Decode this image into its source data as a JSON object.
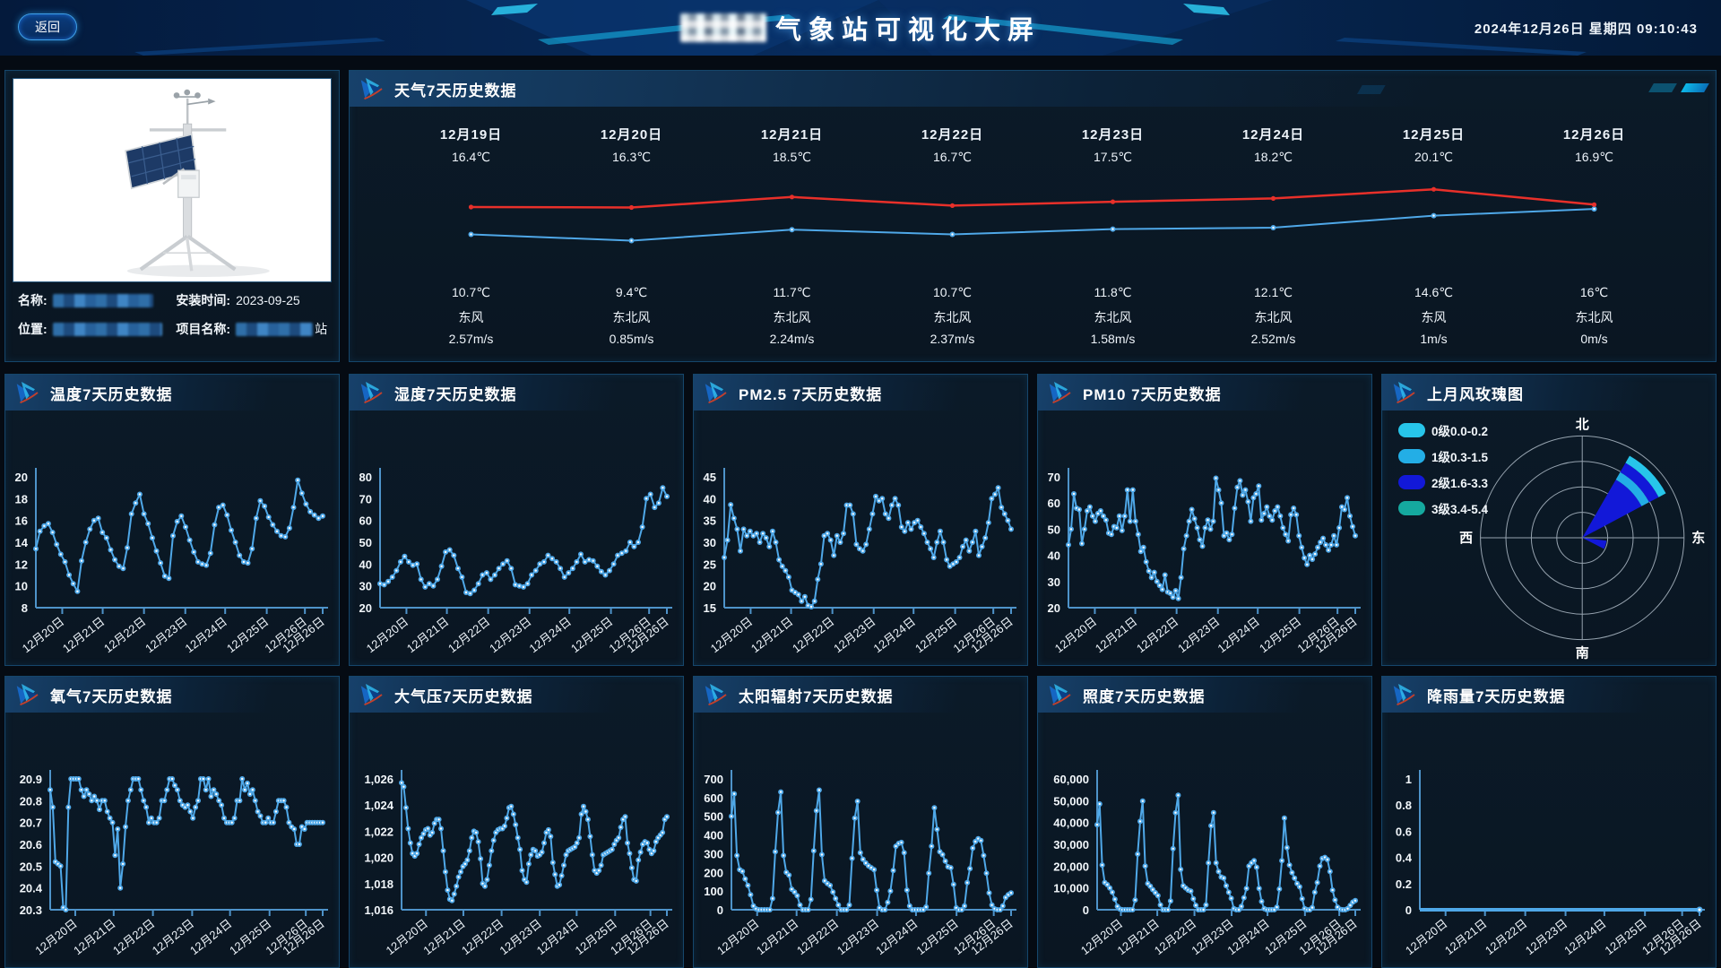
{
  "header": {
    "back_label": "返回",
    "title": "气象站可视化大屏",
    "datetime": "2024年12月26日  星期四  09:10:43"
  },
  "station": {
    "fields": [
      {
        "label": "名称:",
        "value": "",
        "redacted": true
      },
      {
        "label": "安装时间:",
        "value": "2023-09-25",
        "redacted": false
      },
      {
        "label": "位置:",
        "value": "",
        "redacted": true
      },
      {
        "label": "项目名称:",
        "value": "站",
        "redacted": true
      }
    ]
  },
  "theme": {
    "line": "#4fa8e8",
    "red_line": "#e8302a",
    "axis": "#4e93c9",
    "panel_border": "#15466b",
    "accent_cyan": "#0db8e8"
  },
  "chart_data": {
    "x_labels": [
      "12月20日",
      "12月21日",
      "12月22日",
      "12月23日",
      "12月24日",
      "12月25日",
      "12月26日",
      "12月26日"
    ],
    "weather": {
      "title": "天气7天历史数据",
      "type": "line",
      "series_high_color": "#e8302a",
      "series_low_color": "#4fa8e8",
      "ylim": [
        8,
        22
      ],
      "days": [
        {
          "date": "12月19日",
          "high": "16.4℃",
          "high_v": 16.4,
          "low": "10.7℃",
          "low_v": 10.7,
          "wind_dir": "东风",
          "wind_speed": "2.57m/s"
        },
        {
          "date": "12月20日",
          "high": "16.3℃",
          "high_v": 16.3,
          "low": "9.4℃",
          "low_v": 9.4,
          "wind_dir": "东北风",
          "wind_speed": "0.85m/s"
        },
        {
          "date": "12月21日",
          "high": "18.5℃",
          "high_v": 18.5,
          "low": "11.7℃",
          "low_v": 11.7,
          "wind_dir": "东北风",
          "wind_speed": "2.24m/s"
        },
        {
          "date": "12月22日",
          "high": "16.7℃",
          "high_v": 16.7,
          "low": "10.7℃",
          "low_v": 10.7,
          "wind_dir": "东北风",
          "wind_speed": "2.37m/s"
        },
        {
          "date": "12月23日",
          "high": "17.5℃",
          "high_v": 17.5,
          "low": "11.8℃",
          "low_v": 11.8,
          "wind_dir": "东北风",
          "wind_speed": "1.58m/s"
        },
        {
          "date": "12月24日",
          "high": "18.2℃",
          "high_v": 18.2,
          "low": "12.1℃",
          "low_v": 12.1,
          "wind_dir": "东北风",
          "wind_speed": "2.52m/s"
        },
        {
          "date": "12月25日",
          "high": "20.1℃",
          "high_v": 20.1,
          "low": "14.6℃",
          "low_v": 14.6,
          "wind_dir": "东风",
          "wind_speed": "1m/s"
        },
        {
          "date": "12月26日",
          "high": "16.9℃",
          "high_v": 16.9,
          "low": "16℃",
          "low_v": 16.0,
          "wind_dir": "东北风",
          "wind_speed": "0m/s"
        }
      ]
    },
    "panels": [
      {
        "key": "temperature",
        "title": "温度7天历史数据",
        "type": "line",
        "ylim": [
          8,
          20
        ],
        "yticks": [
          "8",
          "10",
          "12",
          "14",
          "16",
          "18",
          "20"
        ],
        "values": [
          13.4,
          15.0,
          15.5,
          15.7,
          14.9,
          13.8,
          12.9,
          12.2,
          11.0,
          10.2,
          9.5,
          12.3,
          14.0,
          15.2,
          16.0,
          16.2,
          14.9,
          14.4,
          13.3,
          12.4,
          11.8,
          11.6,
          13.5,
          16.6,
          17.6,
          18.4,
          16.6,
          15.7,
          14.4,
          13.2,
          12.1,
          10.9,
          10.7,
          14.6,
          15.9,
          16.4,
          15.4,
          14.2,
          13.1,
          12.2,
          12.0,
          11.9,
          13.0,
          15.6,
          17.2,
          17.4,
          16.5,
          15.1,
          14.0,
          12.8,
          12.2,
          12.1,
          13.4,
          16.2,
          17.8,
          17.3,
          16.3,
          15.6,
          15.0,
          14.6,
          14.5,
          15.3,
          17.2,
          19.7,
          18.5,
          17.5,
          16.8,
          16.5,
          16.2,
          16.4
        ]
      },
      {
        "key": "humidity",
        "title": "湿度7天历史数据",
        "type": "line",
        "ylim": [
          20,
          80
        ],
        "yticks": [
          "20",
          "30",
          "40",
          "50",
          "60",
          "70",
          "80"
        ],
        "values": [
          31,
          30.5,
          32,
          34,
          37,
          41,
          43.5,
          41,
          39.5,
          40,
          33,
          29.5,
          31,
          30,
          33,
          39,
          45.5,
          46.5,
          44,
          38,
          34,
          27,
          26.5,
          28,
          31,
          35,
          36,
          33,
          35,
          38,
          40,
          41.5,
          38,
          30.5,
          30,
          29.5,
          31,
          35,
          37,
          40,
          41,
          44,
          42.5,
          41,
          38,
          34,
          36,
          38,
          41,
          44.5,
          41,
          42,
          41.5,
          39,
          36.5,
          35,
          37,
          40,
          44,
          45,
          46,
          50,
          48,
          50,
          57,
          70,
          72,
          66,
          68,
          75,
          71
        ]
      },
      {
        "key": "pm25",
        "title": "PM2.5 7天历史数据",
        "type": "line",
        "ylim": [
          15,
          45
        ],
        "yticks": [
          "15",
          "20",
          "25",
          "30",
          "35",
          "40",
          "45"
        ],
        "values": [
          26.5,
          30.5,
          38.6,
          35.5,
          33,
          28,
          33,
          31.5,
          32.5,
          31.5,
          32,
          30,
          32,
          31,
          29,
          32.5,
          30,
          26,
          24.5,
          23.5,
          22,
          19,
          18.5,
          18,
          16.5,
          17.5,
          15.5,
          15.2,
          16.5,
          21.5,
          25,
          31.5,
          32,
          30.5,
          27,
          31.5,
          30,
          32,
          38.5,
          38.5,
          36.5,
          29.5,
          28.5,
          28,
          29.5,
          33,
          36.5,
          40.5,
          39.5,
          40,
          36.5,
          35.5,
          38.5,
          40,
          38.5,
          33.5,
          32.5,
          34.5,
          33,
          34.5,
          35,
          33.5,
          32,
          30,
          28.5,
          26.5,
          30,
          32.5,
          30,
          26,
          24.5,
          25,
          25.5,
          26.5,
          29,
          30.5,
          28,
          30,
          32.5,
          27,
          29,
          31,
          34.5,
          40,
          41,
          42.5,
          38,
          36.5,
          35,
          33
        ]
      },
      {
        "key": "pm10",
        "title": "PM10 7天历史数据",
        "type": "line",
        "ylim": [
          20,
          70
        ],
        "yticks": [
          "20",
          "30",
          "40",
          "50",
          "60",
          "70"
        ],
        "values": [
          44,
          50,
          63.5,
          58,
          57.5,
          44.5,
          50,
          57,
          58.5,
          55,
          53,
          56,
          57,
          55,
          53.5,
          48.5,
          48,
          51,
          50.5,
          55,
          49.5,
          55,
          65,
          53,
          65,
          53,
          48,
          41.5,
          43,
          37.5,
          34,
          31.5,
          33.5,
          30,
          28.5,
          27,
          32.5,
          26,
          25.5,
          24,
          26.5,
          23.5,
          31.5,
          42.5,
          47.5,
          53,
          57.5,
          54,
          50.5,
          46,
          43.5,
          50.5,
          53.5,
          50,
          53,
          69.5,
          65,
          60,
          47.5,
          48.5,
          46,
          48,
          58,
          66,
          68.5,
          63,
          65,
          60.5,
          53,
          62,
          63.5,
          66.5,
          53.5,
          56,
          58.5,
          55,
          53.5,
          57,
          58.5,
          55,
          50.5,
          48,
          45.5,
          55.5,
          58,
          55.5,
          47.5,
          43,
          39,
          36.5,
          40,
          38.5,
          40.5,
          43,
          45,
          46.5,
          44,
          42,
          44,
          47.5,
          44,
          50.5,
          58.5,
          57.5,
          62,
          55,
          51,
          47.5
        ]
      },
      {
        "key": "windrose",
        "title": "上月风玫瑰图",
        "type": "windrose",
        "compass": {
          "n": "北",
          "e": "东",
          "s": "南",
          "w": "西"
        },
        "legend": [
          {
            "label": "0级0.0-0.2",
            "color": "#27c5ea"
          },
          {
            "label": "1级0.3-1.5",
            "color": "#23aee6"
          },
          {
            "label": "2级1.6-3.3",
            "color": "#1218d8"
          },
          {
            "label": "3级3.4-5.4",
            "color": "#15a99f"
          }
        ],
        "sectors": [
          {
            "a0": 30,
            "a1": 62,
            "bands": [
              {
                "f0": 0,
                "f1": 0.66,
                "color": "#1218d8"
              },
              {
                "f0": 0.66,
                "f1": 0.745,
                "color": "#23aee6"
              },
              {
                "f0": 0.745,
                "f1": 0.85,
                "color": "#1218d8"
              },
              {
                "f0": 0.85,
                "f1": 0.93,
                "color": "#27c5ea"
              }
            ]
          },
          {
            "a0": 97,
            "a1": 117,
            "bands": [
              {
                "f0": 0,
                "f1": 0.24,
                "color": "#1218d8"
              }
            ]
          }
        ]
      },
      {
        "key": "oxygen",
        "title": "氧气7天历史数据",
        "type": "line",
        "ylim": [
          20.3,
          20.9
        ],
        "yticks": [
          "20.3",
          "20.4",
          "20.5",
          "20.6",
          "20.7",
          "20.8",
          "20.9"
        ],
        "values": [
          20.85,
          20.77,
          20.52,
          20.51,
          20.5,
          20.31,
          20.3,
          20.77,
          20.9,
          20.9,
          20.9,
          20.9,
          20.85,
          20.82,
          20.85,
          20.83,
          20.8,
          20.82,
          20.8,
          20.76,
          20.8,
          20.8,
          20.75,
          20.72,
          20.7,
          20.55,
          20.67,
          20.4,
          20.51,
          20.68,
          20.8,
          20.85,
          20.9,
          20.9,
          20.9,
          20.85,
          20.8,
          20.77,
          20.7,
          20.72,
          20.7,
          20.7,
          20.72,
          20.8,
          20.8,
          20.85,
          20.9,
          20.9,
          20.87,
          20.85,
          20.8,
          20.78,
          20.77,
          20.78,
          20.75,
          20.72,
          20.77,
          20.8,
          20.9,
          20.9,
          20.85,
          20.9,
          20.82,
          20.85,
          20.83,
          20.8,
          20.78,
          20.72,
          20.7,
          20.7,
          20.7,
          20.72,
          20.8,
          20.8,
          20.9,
          20.85,
          20.88,
          20.83,
          20.85,
          20.8,
          20.75,
          20.73,
          20.7,
          20.7,
          20.72,
          20.7,
          20.7,
          20.75,
          20.8,
          20.8,
          20.8,
          20.77,
          20.7,
          20.68,
          20.67,
          20.6,
          20.6,
          20.68,
          20.67,
          20.7,
          20.7,
          20.7,
          20.7,
          20.7,
          20.7,
          20.7
        ]
      },
      {
        "key": "pressure",
        "title": "大气压7天历史数据",
        "type": "line",
        "ylim": [
          1016,
          1026
        ],
        "yticks": [
          "1,016",
          "1,018",
          "1,020",
          "1,022",
          "1,024",
          "1,026"
        ],
        "values": [
          1025.7,
          1025.4,
          1023.8,
          1022.2,
          1021.1,
          1020.3,
          1020.1,
          1020.3,
          1021,
          1021.5,
          1021.8,
          1022.1,
          1022.2,
          1021.7,
          1021.9,
          1022.6,
          1022.9,
          1022.9,
          1022.2,
          1020.5,
          1018.9,
          1017.5,
          1016.8,
          1016.7,
          1017.2,
          1017.8,
          1018.5,
          1018.9,
          1019.3,
          1019.5,
          1019.8,
          1020.5,
          1021.5,
          1022,
          1021.9,
          1021.2,
          1019.9,
          1018,
          1017.8,
          1018.3,
          1019.4,
          1020.5,
          1021.3,
          1021.9,
          1022.1,
          1022.2,
          1022.2,
          1022.4,
          1023,
          1023.8,
          1023.9,
          1023.3,
          1022.5,
          1021.5,
          1020.6,
          1019,
          1018.3,
          1018.1,
          1019.5,
          1020.2,
          1020.6,
          1020.5,
          1020.1,
          1020.2,
          1020.4,
          1021.1,
          1021.9,
          1022.1,
          1021.6,
          1019.6,
          1018.7,
          1017.8,
          1017.9,
          1018.6,
          1019.4,
          1020.2,
          1020.5,
          1020.6,
          1020.7,
          1020.8,
          1021.1,
          1021.5,
          1023.3,
          1023.9,
          1023.5,
          1022.9,
          1021.6,
          1020.2,
          1019,
          1018.8,
          1019,
          1019.4,
          1020.2,
          1020.3,
          1020.4,
          1020.5,
          1020.6,
          1021,
          1021.3,
          1021.5,
          1022.3,
          1022.9,
          1023.1,
          1021.1,
          1020.3,
          1019.2,
          1018.3,
          1018.2,
          1019.8,
          1020.4,
          1021,
          1021.2,
          1021.1,
          1020.6,
          1020.3,
          1020.5,
          1021.2,
          1021.5,
          1021.7,
          1021.9,
          1022.9,
          1023.1
        ]
      },
      {
        "key": "solar",
        "title": "太阳辐射7天历史数据",
        "type": "line",
        "ylim": [
          0,
          700
        ],
        "yticks": [
          "0",
          "100",
          "200",
          "300",
          "400",
          "500",
          "600",
          "700"
        ],
        "values": [
          500,
          620,
          290,
          215,
          205,
          165,
          130,
          80,
          20,
          5,
          0,
          0,
          0,
          0,
          0,
          60,
          310,
          520,
          630,
          290,
          200,
          185,
          110,
          95,
          75,
          25,
          0,
          0,
          0,
          55,
          315,
          530,
          640,
          295,
          155,
          140,
          130,
          95,
          60,
          25,
          0,
          0,
          0,
          25,
          275,
          490,
          580,
          305,
          270,
          250,
          235,
          225,
          215,
          105,
          10,
          0,
          0,
          40,
          100,
          210,
          340,
          355,
          360,
          305,
          105,
          20,
          0,
          0,
          0,
          0,
          0,
          15,
          195,
          340,
          545,
          430,
          310,
          295,
          260,
          230,
          225,
          135,
          10,
          0,
          0,
          20,
          145,
          220,
          330,
          365,
          380,
          370,
          290,
          195,
          90,
          25,
          5,
          0,
          0,
          20,
          65,
          80,
          90
        ]
      },
      {
        "key": "lux",
        "title": "照度7天历史数据",
        "type": "line",
        "ylim": [
          0,
          60000
        ],
        "yticks": [
          "0",
          "10,000",
          "20,000",
          "30,000",
          "40,000",
          "50,000",
          "60,000"
        ],
        "values": [
          39000,
          48500,
          20500,
          12500,
          11500,
          10000,
          8000,
          4800,
          1500,
          300,
          0,
          0,
          0,
          0,
          0,
          4500,
          25500,
          40500,
          49800,
          20000,
          12000,
          10800,
          9200,
          7800,
          6500,
          2200,
          0,
          0,
          0,
          4000,
          28000,
          44500,
          52500,
          18500,
          11000,
          10000,
          9000,
          8500,
          5000,
          2000,
          0,
          0,
          0,
          2200,
          21500,
          38500,
          44500,
          21500,
          17500,
          15000,
          14500,
          11000,
          8000,
          5200,
          500,
          0,
          0,
          1500,
          5500,
          9800,
          20000,
          21500,
          22500,
          19500,
          9800,
          3800,
          500,
          0,
          0,
          0,
          0,
          1200,
          9500,
          22500,
          42000,
          28500,
          20500,
          17000,
          14500,
          12000,
          10500,
          5000,
          500,
          0,
          0,
          1000,
          8000,
          12500,
          20000,
          23500,
          24000,
          23000,
          17500,
          9000,
          4500,
          1200,
          200,
          0,
          0,
          500,
          2000,
          3500,
          4200
        ]
      },
      {
        "key": "rain",
        "title": "降雨量7天历史数据",
        "type": "line",
        "markers": "end",
        "ylim": [
          0,
          1
        ],
        "yticks": [
          "0",
          "0.2",
          "0.4",
          "0.6",
          "0.8",
          "1"
        ],
        "values": [
          0,
          0,
          0,
          0,
          0,
          0,
          0,
          0,
          0,
          0,
          0,
          0,
          0,
          0,
          0,
          0,
          0,
          0,
          0,
          0,
          0,
          0,
          0,
          0,
          0,
          0,
          0,
          0,
          0,
          0,
          0,
          0,
          0,
          0,
          0,
          0,
          0,
          0,
          0,
          0
        ]
      }
    ]
  }
}
